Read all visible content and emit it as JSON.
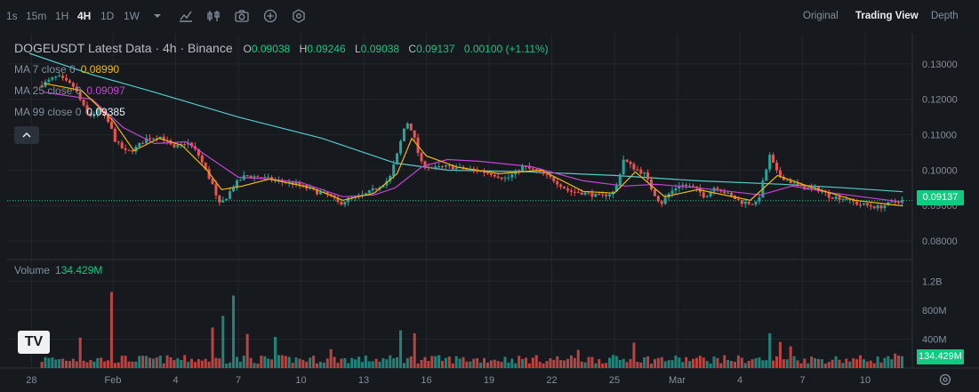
{
  "toolbar": {
    "intervals": [
      "1s",
      "15m",
      "1H",
      "4H",
      "1D",
      "1W"
    ],
    "active_interval": "4H",
    "icons": [
      "chevron-down-icon",
      "drawing-icon",
      "indicators-icon",
      "camera-icon",
      "add-icon",
      "settings-icon"
    ],
    "views": [
      "Original",
      "Trading View",
      "Depth"
    ],
    "active_view": "Trading View"
  },
  "legend": {
    "symbol": "DOGEUSDT Latest Data · 4h · Binance",
    "o_label": "O",
    "o": "0.09038",
    "h_label": "H",
    "h": "0.09246",
    "l_label": "L",
    "l": "0.09038",
    "c_label": "C",
    "c": "0.09137",
    "change": "0.00100 (+1.11%)",
    "ma7_label": "MA 7 close 0",
    "ma7_value": "0.08990",
    "ma25_label": "MA 25 close 0",
    "ma25_value": "0.09097",
    "ma99_label": "MA 99 close 0",
    "ma99_value": "0.09385",
    "volume_label": "Volume",
    "volume_value": "134.429M"
  },
  "colors": {
    "up": "#26a69a",
    "down": "#ef5350",
    "ma7": "#f0b90b",
    "ma25": "#c445d3",
    "ma99": "#58c9c9",
    "tag": "#0ecb81",
    "background": "#161a1e"
  },
  "chart_data": {
    "type": "candlestick",
    "symbol": "DOGEUSDT",
    "interval": "4h",
    "price_axis": {
      "ticks": [
        "0.13000",
        "0.12000",
        "0.11000",
        "0.10000",
        "0.09000",
        "0.08000"
      ],
      "min": 0.076,
      "max": 0.135
    },
    "volume_axis": {
      "ticks": [
        "1.2B",
        "800M",
        "400M"
      ],
      "max": 1400
    },
    "x_ticks": [
      "28",
      "Feb",
      "4",
      "7",
      "10",
      "13",
      "16",
      "19",
      "22",
      "25",
      "Mar",
      "4",
      "7",
      "10"
    ],
    "last_price": "0.09137",
    "last_volume": "134.429M",
    "anchors_day_price": [
      [
        -3.3,
        0.124
      ],
      [
        -2.5,
        0.1265
      ],
      [
        -1.7,
        0.1235
      ],
      [
        -1.0,
        0.115
      ],
      [
        -0.5,
        0.117
      ],
      [
        0,
        0.113
      ],
      [
        0.3,
        0.108
      ],
      [
        0.8,
        0.105
      ],
      [
        1.2,
        0.106
      ],
      [
        1.8,
        0.109
      ],
      [
        2.5,
        0.1095
      ],
      [
        3.1,
        0.106
      ],
      [
        3.7,
        0.108
      ],
      [
        4.2,
        0.105
      ],
      [
        4.6,
        0.1
      ],
      [
        5.0,
        0.095
      ],
      [
        5.2,
        0.09
      ],
      [
        5.5,
        0.0915
      ],
      [
        6.0,
        0.096
      ],
      [
        6.5,
        0.0985
      ],
      [
        7.2,
        0.098
      ],
      [
        8.0,
        0.097
      ],
      [
        9.0,
        0.096
      ],
      [
        9.8,
        0.094
      ],
      [
        10.5,
        0.093
      ],
      [
        11.0,
        0.0905
      ],
      [
        11.5,
        0.092
      ],
      [
        12.2,
        0.093
      ],
      [
        12.8,
        0.095
      ],
      [
        13.4,
        0.0975
      ],
      [
        13.8,
        0.105
      ],
      [
        14.2,
        0.114
      ],
      [
        14.5,
        0.111
      ],
      [
        14.9,
        0.102
      ],
      [
        15.5,
        0.1005
      ],
      [
        16.2,
        0.101
      ],
      [
        16.8,
        0.1005
      ],
      [
        17.5,
        0.1
      ],
      [
        18.3,
        0.099
      ],
      [
        19.0,
        0.0975
      ],
      [
        19.8,
        0.101
      ],
      [
        20.5,
        0.0995
      ],
      [
        21.2,
        0.0975
      ],
      [
        22.0,
        0.094
      ],
      [
        22.8,
        0.0935
      ],
      [
        23.5,
        0.0925
      ],
      [
        24.2,
        0.094
      ],
      [
        24.6,
        0.103
      ],
      [
        25.0,
        0.101
      ],
      [
        25.6,
        0.099
      ],
      [
        26.0,
        0.094
      ],
      [
        26.4,
        0.0905
      ],
      [
        26.8,
        0.0935
      ],
      [
        27.3,
        0.096
      ],
      [
        28.0,
        0.095
      ],
      [
        28.5,
        0.0925
      ],
      [
        29.0,
        0.0955
      ],
      [
        29.5,
        0.0935
      ],
      [
        30.2,
        0.091
      ],
      [
        31.0,
        0.0905
      ],
      [
        31.6,
        0.104
      ],
      [
        32.0,
        0.0985
      ],
      [
        32.5,
        0.097
      ],
      [
        33.2,
        0.095
      ],
      [
        34.0,
        0.0945
      ],
      [
        34.5,
        0.0925
      ],
      [
        35.2,
        0.092
      ],
      [
        35.8,
        0.0905
      ],
      [
        36.3,
        0.09
      ],
      [
        36.8,
        0.0895
      ],
      [
        37.3,
        0.0905
      ],
      [
        37.8,
        0.0914
      ]
    ],
    "ma7": [
      [
        -3.3,
        0.1245
      ],
      [
        -1.5,
        0.1225
      ],
      [
        0,
        0.114
      ],
      [
        1.0,
        0.1055
      ],
      [
        2.2,
        0.109
      ],
      [
        3.3,
        0.107
      ],
      [
        4.5,
        0.1
      ],
      [
        5.2,
        0.0945
      ],
      [
        6.2,
        0.0955
      ],
      [
        7.5,
        0.0975
      ],
      [
        9.5,
        0.095
      ],
      [
        11.0,
        0.0915
      ],
      [
        12.5,
        0.0935
      ],
      [
        13.6,
        0.099
      ],
      [
        14.3,
        0.109
      ],
      [
        15.0,
        0.104
      ],
      [
        16.5,
        0.1008
      ],
      [
        18.5,
        0.099
      ],
      [
        20.5,
        0.1
      ],
      [
        22.5,
        0.094
      ],
      [
        24.0,
        0.0935
      ],
      [
        25.0,
        0.0995
      ],
      [
        26.4,
        0.0925
      ],
      [
        28.0,
        0.0945
      ],
      [
        30.5,
        0.0915
      ],
      [
        31.8,
        0.0985
      ],
      [
        33.5,
        0.095
      ],
      [
        35.5,
        0.0915
      ],
      [
        37.8,
        0.0899
      ]
    ],
    "ma25": [
      [
        -3.3,
        0.122
      ],
      [
        -1.0,
        0.12
      ],
      [
        0.5,
        0.112
      ],
      [
        2.0,
        0.1075
      ],
      [
        3.5,
        0.108
      ],
      [
        5.0,
        0.102
      ],
      [
        6.0,
        0.098
      ],
      [
        7.5,
        0.0975
      ],
      [
        9.0,
        0.0965
      ],
      [
        11.0,
        0.0925
      ],
      [
        12.5,
        0.093
      ],
      [
        13.5,
        0.095
      ],
      [
        14.8,
        0.101
      ],
      [
        16.0,
        0.103
      ],
      [
        17.5,
        0.1025
      ],
      [
        20.0,
        0.101
      ],
      [
        22.5,
        0.097
      ],
      [
        24.5,
        0.0955
      ],
      [
        26.0,
        0.096
      ],
      [
        28.0,
        0.095
      ],
      [
        31.0,
        0.093
      ],
      [
        32.5,
        0.0955
      ],
      [
        34.5,
        0.0935
      ],
      [
        37.8,
        0.091
      ]
    ],
    "ma99": [
      [
        -4.0,
        0.133
      ],
      [
        -1.0,
        0.127
      ],
      [
        2.0,
        0.122
      ],
      [
        6.0,
        0.115
      ],
      [
        10.0,
        0.109
      ],
      [
        13.5,
        0.102
      ],
      [
        16.0,
        0.1
      ],
      [
        20.0,
        0.0995
      ],
      [
        24.0,
        0.0985
      ],
      [
        28.0,
        0.097
      ],
      [
        32.0,
        0.096
      ],
      [
        35.0,
        0.095
      ],
      [
        37.8,
        0.0939
      ]
    ],
    "volume_spikes": [
      [
        0,
        1050
      ],
      [
        -1.5,
        420
      ],
      [
        4.8,
        560
      ],
      [
        5.3,
        720
      ],
      [
        5.7,
        1000
      ],
      [
        6.4,
        470
      ],
      [
        13.8,
        520
      ],
      [
        14.5,
        480
      ],
      [
        25.0,
        350
      ],
      [
        31.4,
        480
      ],
      [
        31.9,
        360
      ],
      [
        32.4,
        300
      ],
      [
        7.8,
        430
      ],
      [
        10.5,
        260
      ],
      [
        22.2,
        250
      ],
      [
        37.5,
        200
      ]
    ]
  }
}
